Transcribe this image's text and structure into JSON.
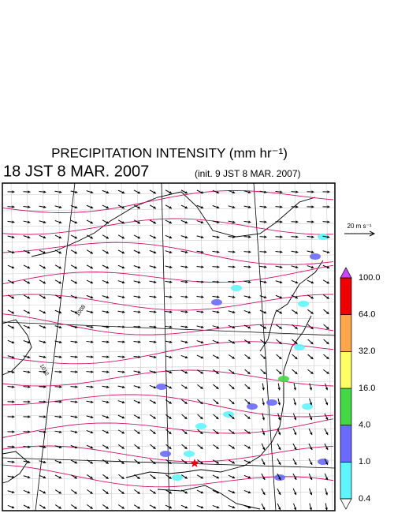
{
  "title": "PRECIPITATION INTENSITY (mm hr⁻¹)",
  "valid_time": "18 JST 8 MAR. 2007",
  "init_time": "(init. 9 JST 8 MAR. 2007)",
  "reference_vector": "20 m s⁻¹",
  "isobar_labels": [
    "1008",
    "1012"
  ],
  "colorbar": {
    "levels": [
      {
        "value": 0.4,
        "label": "0.4"
      },
      {
        "value": 1,
        "label": "1.0"
      },
      {
        "value": 4,
        "label": "4.0"
      },
      {
        "value": 16,
        "label": "16.0"
      },
      {
        "value": 32,
        "label": "32.0"
      },
      {
        "value": 64,
        "label": "64.0"
      },
      {
        "value": 100,
        "label": "100.0"
      }
    ],
    "colors": [
      "#5ff5ff",
      "#6a6aff",
      "#44d844",
      "#ffff66",
      "#ffa64d",
      "#ee0000"
    ],
    "under_color": "#ffffff",
    "over_color": "#cc44ff"
  }
}
